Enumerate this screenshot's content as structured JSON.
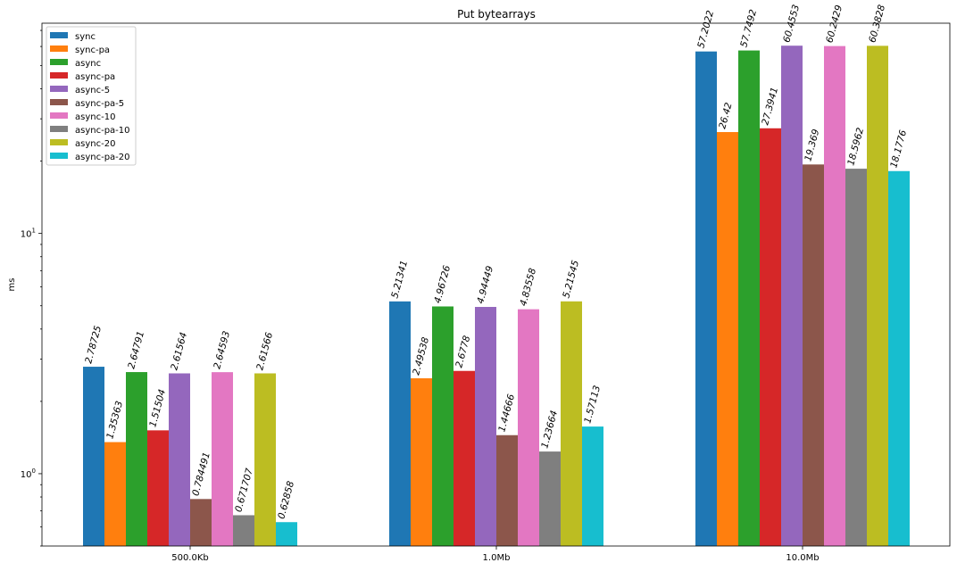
{
  "chart_data": {
    "type": "bar",
    "title": "Put bytearrays",
    "xlabel": "",
    "ylabel": "ms",
    "yscale": "log",
    "ylim": [
      0.5,
      75
    ],
    "yticks": [
      {
        "value": 1,
        "label": "10",
        "exp": "0"
      },
      {
        "value": 10,
        "label": "10",
        "exp": "1"
      }
    ],
    "categories": [
      "500.0Kb",
      "1.0Mb",
      "10.0Mb"
    ],
    "legend_position": "upper-left",
    "grid": false,
    "series": [
      {
        "name": "sync",
        "color": "#1f77b4",
        "values": [
          2.78725,
          5.21341,
          57.2022
        ],
        "labels": [
          "2.78725",
          "5.21341",
          "57.2022"
        ]
      },
      {
        "name": "sync-pa",
        "color": "#ff7f0e",
        "values": [
          1.35363,
          2.49538,
          26.42
        ],
        "labels": [
          "1.35363",
          "2.49538",
          "26.42"
        ]
      },
      {
        "name": "async",
        "color": "#2ca02c",
        "values": [
          2.64791,
          4.96726,
          57.7492
        ],
        "labels": [
          "2.64791",
          "4.96726",
          "57.7492"
        ]
      },
      {
        "name": "async-pa",
        "color": "#d62728",
        "values": [
          1.51504,
          2.6778,
          27.3941
        ],
        "labels": [
          "1.51504",
          "2.6778",
          "27.3941"
        ]
      },
      {
        "name": "async-5",
        "color": "#9467bd",
        "values": [
          2.61564,
          4.94449,
          60.4553
        ],
        "labels": [
          "2.61564",
          "4.94449",
          "60.4553"
        ]
      },
      {
        "name": "async-pa-5",
        "color": "#8c564b",
        "values": [
          0.784491,
          1.44666,
          19.369
        ],
        "labels": [
          "0.784491",
          "1.44666",
          "19.369"
        ]
      },
      {
        "name": "async-10",
        "color": "#e377c2",
        "values": [
          2.64593,
          4.83558,
          60.2429
        ],
        "labels": [
          "2.64593",
          "4.83558",
          "60.2429"
        ]
      },
      {
        "name": "async-pa-10",
        "color": "#7f7f7f",
        "values": [
          0.671707,
          1.23664,
          18.5962
        ],
        "labels": [
          "0.671707",
          "1.23664",
          "18.5962"
        ]
      },
      {
        "name": "async-20",
        "color": "#bcbd22",
        "values": [
          2.61566,
          5.21545,
          60.3828
        ],
        "labels": [
          "2.61566",
          "5.21545",
          "60.3828"
        ]
      },
      {
        "name": "async-pa-20",
        "color": "#17becf",
        "values": [
          0.62858,
          1.57113,
          18.1776
        ],
        "labels": [
          "0.62858",
          "1.57113",
          "18.1776"
        ]
      }
    ]
  }
}
